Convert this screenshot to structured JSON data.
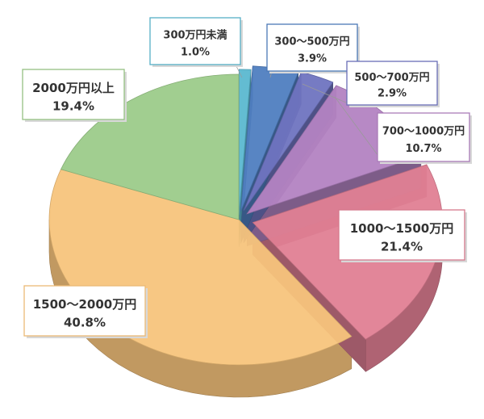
{
  "chart_data": {
    "type": "pie",
    "title": "",
    "categories": [
      "300万円未満",
      "300～500万円",
      "500～700万円",
      "700～1000万円",
      "1000～1500万円",
      "1500～2000万円",
      "2000万円以上"
    ],
    "values": [
      1.0,
      3.9,
      2.9,
      10.7,
      21.4,
      40.8,
      19.4
    ],
    "value_labels": [
      "1.0%",
      "3.9%",
      "2.9%",
      "10.7%",
      "21.4%",
      "40.8%",
      "19.4%"
    ],
    "colors": [
      "#5bb8d0",
      "#4f7ec0",
      "#6f74c0",
      "#b383c2",
      "#e07f94",
      "#f7c47c",
      "#9ccb8a"
    ],
    "style": "3d-exploded",
    "legend": "none"
  }
}
